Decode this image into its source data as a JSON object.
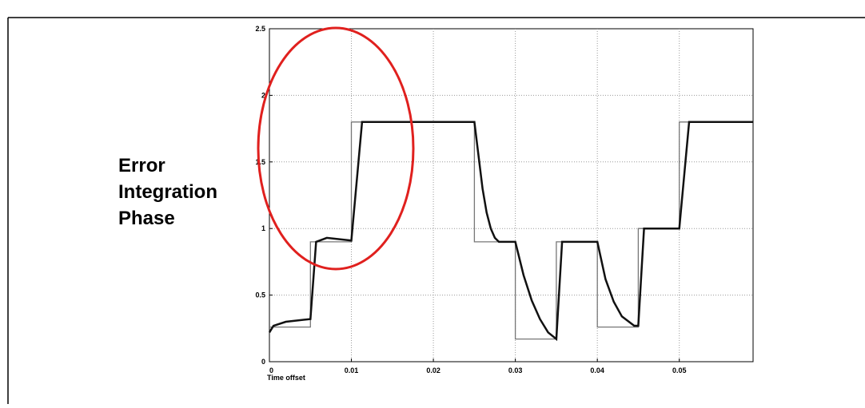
{
  "chart_data": {
    "type": "line",
    "x_label": "Time offset",
    "annotation": "Error Integration Phase",
    "xlim": [
      0,
      0.059
    ],
    "ylim": [
      0,
      2.5
    ],
    "xticks": [
      0,
      0.01,
      0.02,
      0.03,
      0.04,
      0.05
    ],
    "yticks": [
      0,
      0.5,
      1,
      1.5,
      2,
      2.5
    ],
    "grid": true,
    "series": [
      {
        "color": "#777777",
        "x": [
          0,
          0.005,
          0.005,
          0.01,
          0.01,
          0.025,
          0.025,
          0.03,
          0.03,
          0.035,
          0.035,
          0.04,
          0.04,
          0.045,
          0.045,
          0.05,
          0.05,
          0.059
        ],
        "values": [
          0.26,
          0.26,
          0.9,
          0.9,
          1.8,
          1.8,
          0.9,
          0.9,
          0.17,
          0.17,
          0.9,
          0.9,
          0.26,
          0.26,
          1.0,
          1.0,
          1.8,
          1.8
        ]
      },
      {
        "color": "#111111",
        "x": [
          0,
          0.0005,
          0.002,
          0.005,
          0.0057,
          0.007,
          0.01,
          0.0113,
          0.012,
          0.025,
          0.0255,
          0.026,
          0.0265,
          0.027,
          0.0275,
          0.028,
          0.03,
          0.031,
          0.032,
          0.033,
          0.034,
          0.035,
          0.0357,
          0.04,
          0.041,
          0.042,
          0.043,
          0.0445,
          0.045,
          0.0457,
          0.05,
          0.0512,
          0.059
        ],
        "values": [
          0.22,
          0.27,
          0.3,
          0.32,
          0.9,
          0.93,
          0.91,
          1.8,
          1.8,
          1.8,
          1.55,
          1.3,
          1.12,
          1.0,
          0.93,
          0.9,
          0.9,
          0.65,
          0.46,
          0.32,
          0.22,
          0.17,
          0.9,
          0.9,
          0.62,
          0.45,
          0.34,
          0.27,
          0.27,
          1.0,
          1.0,
          1.8,
          1.8
        ]
      }
    ]
  }
}
